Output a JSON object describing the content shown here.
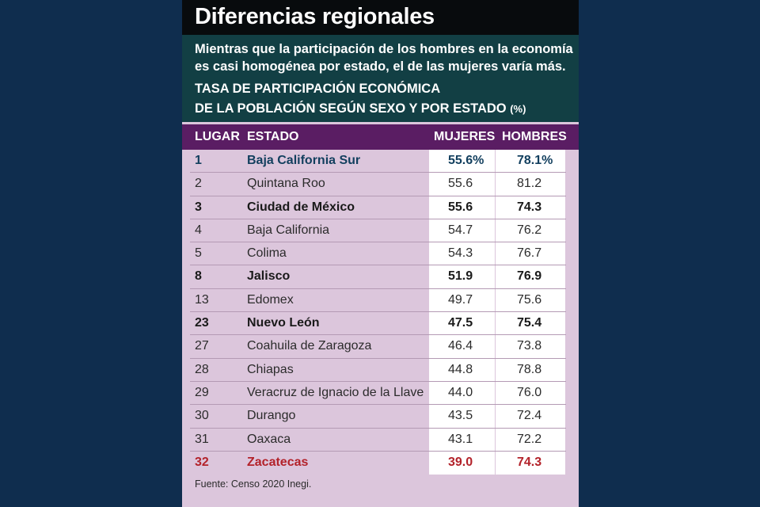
{
  "header": {
    "title": "Diferencias regionales",
    "subtitle": "Mientras que la participación de los hombres en la economía es casi homogénea por estado, el de las mujeres varía más.",
    "heading_line1": "TASA DE PARTICIPACIÓN ECONÓMICA",
    "heading_line2": "DE LA POBLACIÓN SEGÚN SEXO Y POR ESTADO",
    "unit": "(%)"
  },
  "columns": {
    "rank": "LUGAR",
    "state": "ESTADO",
    "women": "MUJERES",
    "men": "HOMBRES"
  },
  "chart_data": {
    "type": "table",
    "title": "Diferencias regionales",
    "columns": [
      "LUGAR",
      "ESTADO",
      "MUJERES",
      "HOMBRES"
    ],
    "rows": [
      {
        "rank": "1",
        "state": "Baja California Sur",
        "women": "55.6%",
        "men": "78.1%"
      },
      {
        "rank": "2",
        "state": "Quintana Roo",
        "women": "55.6",
        "men": "81.2"
      },
      {
        "rank": "3",
        "state": "Ciudad de México",
        "women": "55.6",
        "men": "74.3"
      },
      {
        "rank": "4",
        "state": "Baja California",
        "women": "54.7",
        "men": "76.2"
      },
      {
        "rank": "5",
        "state": "Colima",
        "women": "54.3",
        "men": "76.7"
      },
      {
        "rank": "8",
        "state": "Jalisco",
        "women": "51.9",
        "men": "76.9"
      },
      {
        "rank": "13",
        "state": "Edomex",
        "women": "49.7",
        "men": "75.6"
      },
      {
        "rank": "23",
        "state": "Nuevo León",
        "women": "47.5",
        "men": "75.4"
      },
      {
        "rank": "27",
        "state": "Coahuila de Zaragoza",
        "women": "46.4",
        "men": "73.8"
      },
      {
        "rank": "28",
        "state": "Chiapas",
        "women": "44.8",
        "men": "78.8"
      },
      {
        "rank": "29",
        "state": "Veracruz de Ignacio de la Llave",
        "women": "44.0",
        "men": "76.0"
      },
      {
        "rank": "30",
        "state": "Durango",
        "women": "43.5",
        "men": "72.4"
      },
      {
        "rank": "31",
        "state": "Oaxaca",
        "women": "43.1",
        "men": "72.2"
      },
      {
        "rank": "32",
        "state": "Zacatecas",
        "women": "39.0",
        "men": "74.3"
      }
    ]
  },
  "styles": {
    "first_color": "#123f5e",
    "bold_color": "#1a1a1a",
    "last_color": "#b3222a",
    "header_bg": "#5a1d63",
    "title_bg": "#080b0d",
    "intro_bg": "#123f44"
  },
  "footer": {
    "source_label": "Fuente:",
    "source_text": "Censo 2020 Inegi."
  }
}
